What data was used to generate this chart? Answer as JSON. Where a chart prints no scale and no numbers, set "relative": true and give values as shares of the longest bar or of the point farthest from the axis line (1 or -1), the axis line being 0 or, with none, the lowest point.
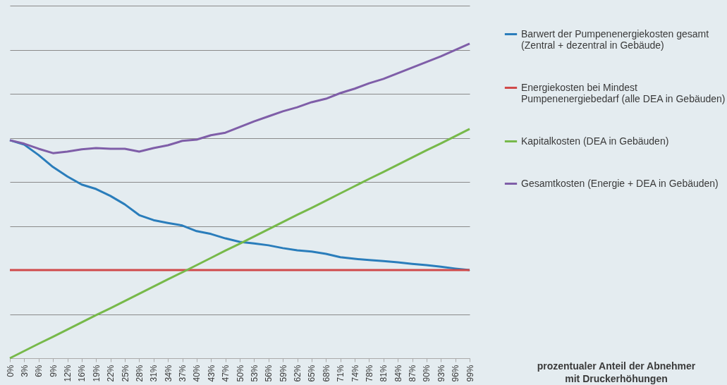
{
  "chart_data": {
    "type": "line",
    "relative": true,
    "annotations": [
      "prozentualer Anteil der Abnehmer mit Druckerhöhungen"
    ],
    "categories": [
      "0%",
      "3%",
      "6%",
      "9%",
      "12%",
      "16%",
      "19%",
      "22%",
      "25%",
      "28%",
      "31%",
      "34%",
      "37%",
      "40%",
      "43%",
      "47%",
      "50%",
      "53%",
      "56%",
      "59%",
      "62%",
      "65%",
      "68%",
      "71%",
      "74%",
      "78%",
      "81%",
      "84%",
      "87%",
      "90%",
      "93%",
      "96%",
      "99%"
    ],
    "series": [
      {
        "name": "Barwert der Pumpenenergiekosten gesamt\n(Zentral + dezentral in Gebäude)",
        "color": "#2a7dbb",
        "values": [
          0.693,
          0.679,
          0.646,
          0.608,
          0.578,
          0.552,
          0.538,
          0.516,
          0.489,
          0.455,
          0.439,
          0.43,
          0.422,
          0.404,
          0.395,
          0.381,
          0.37,
          0.365,
          0.359,
          0.35,
          0.343,
          0.339,
          0.332,
          0.321,
          0.316,
          0.312,
          0.309,
          0.305,
          0.3,
          0.296,
          0.291,
          0.285,
          0.28
        ]
      },
      {
        "name": "Energiekosten bei Mindest\nPumpenenergiebedarf (alle DEA in Gebäuden)",
        "color": "#d04a4a",
        "values": [
          0.28,
          0.28,
          0.28,
          0.28,
          0.28,
          0.28,
          0.28,
          0.28,
          0.28,
          0.28,
          0.28,
          0.28,
          0.28,
          0.28,
          0.28,
          0.28,
          0.28,
          0.28,
          0.28,
          0.28,
          0.28,
          0.28,
          0.28,
          0.28,
          0.28,
          0.28,
          0.28,
          0.28,
          0.28,
          0.28,
          0.28,
          0.28,
          0.28
        ]
      },
      {
        "name": "Kapitalkosten (DEA in Gebäuden)",
        "color": "#77b94a",
        "values": [
          0,
          0.023,
          0.046,
          0.068,
          0.091,
          0.114,
          0.137,
          0.159,
          0.182,
          0.205,
          0.228,
          0.251,
          0.273,
          0.296,
          0.319,
          0.342,
          0.364,
          0.387,
          0.41,
          0.433,
          0.456,
          0.478,
          0.501,
          0.524,
          0.547,
          0.57,
          0.592,
          0.615,
          0.638,
          0.661,
          0.683,
          0.706,
          0.729
        ]
      },
      {
        "name": "Gesamtkosten (Energie + DEA in Gebäuden)",
        "color": "#7f5ea8",
        "values": [
          0.693,
          0.682,
          0.666,
          0.652,
          0.657,
          0.664,
          0.668,
          0.666,
          0.666,
          0.657,
          0.668,
          0.677,
          0.691,
          0.695,
          0.709,
          0.717,
          0.735,
          0.753,
          0.769,
          0.785,
          0.798,
          0.814,
          0.825,
          0.843,
          0.857,
          0.874,
          0.888,
          0.906,
          0.924,
          0.942,
          0.96,
          0.98,
          1.0
        ]
      }
    ],
    "grid": "y",
    "legend": "right",
    "marker": "none",
    "line_style": "solid"
  }
}
